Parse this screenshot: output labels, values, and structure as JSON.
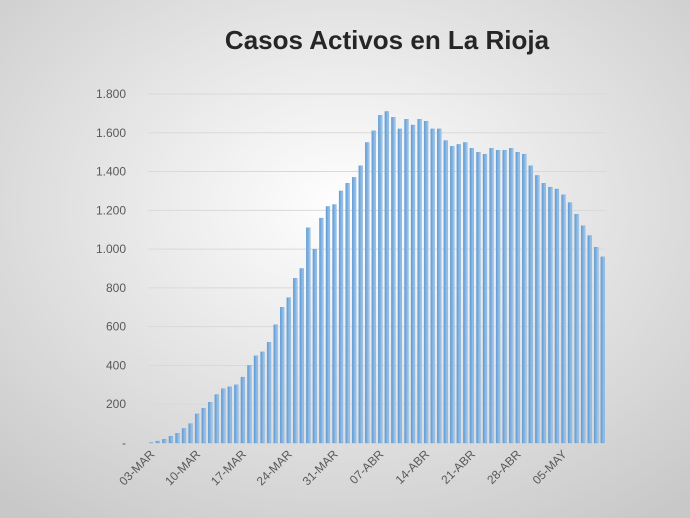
{
  "chart_data": {
    "type": "bar",
    "title": "Casos Activos en La Rioja",
    "categories": [
      "03-MAR",
      null,
      null,
      null,
      null,
      null,
      null,
      "10-MAR",
      null,
      null,
      null,
      null,
      null,
      null,
      "17-MAR",
      null,
      null,
      null,
      null,
      null,
      null,
      "24-MAR",
      null,
      null,
      null,
      null,
      null,
      null,
      "31-MAR",
      null,
      null,
      null,
      null,
      null,
      null,
      "07-ABR",
      null,
      null,
      null,
      null,
      null,
      null,
      "14-ABR",
      null,
      null,
      null,
      null,
      null,
      null,
      "21-ABR",
      null,
      null,
      null,
      null,
      null,
      null,
      "28-ABR",
      null,
      null,
      null,
      null,
      null,
      null,
      "05-MAY",
      null,
      null,
      null,
      null,
      null,
      null
    ],
    "values": [
      2,
      10,
      20,
      35,
      50,
      75,
      100,
      150,
      180,
      210,
      250,
      280,
      290,
      300,
      340,
      400,
      450,
      470,
      520,
      610,
      700,
      750,
      850,
      900,
      1110,
      1000,
      1160,
      1220,
      1230,
      1300,
      1340,
      1370,
      1430,
      1550,
      1610,
      1690,
      1710,
      1680,
      1620,
      1670,
      1640,
      1670,
      1660,
      1620,
      1620,
      1560,
      1530,
      1540,
      1550,
      1520,
      1500,
      1490,
      1520,
      1510,
      1510,
      1520,
      1500,
      1490,
      1430,
      1380,
      1340,
      1320,
      1310,
      1280,
      1240,
      1180,
      1120,
      1070,
      1010,
      960
    ],
    "color": "#5b9bd5",
    "ylim": [
      0,
      1800
    ],
    "yticks": [
      {
        "value": 0,
        "label": "-"
      },
      200,
      400,
      600,
      800,
      {
        "value": 1000,
        "label": "1.000"
      },
      {
        "value": 1200,
        "label": "1.200"
      },
      {
        "value": 1400,
        "label": "1.400"
      },
      {
        "value": 1600,
        "label": "1.600"
      },
      {
        "value": 1800,
        "label": "1.800"
      }
    ],
    "grid": true
  }
}
